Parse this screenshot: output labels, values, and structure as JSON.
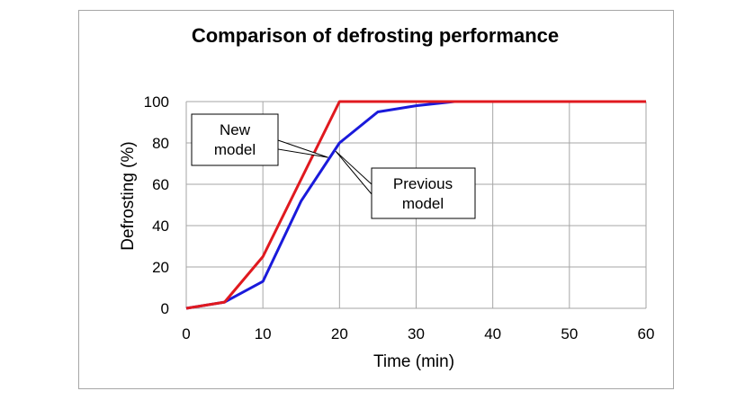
{
  "chart_data": {
    "type": "line",
    "title": "Comparison of defrosting performance",
    "xlabel": "Time (min)",
    "ylabel": "Defrosting (%)",
    "xlim": [
      0,
      60
    ],
    "ylim": [
      0,
      100
    ],
    "x_ticks": [
      0,
      10,
      20,
      30,
      40,
      50,
      60
    ],
    "y_ticks": [
      0,
      20,
      40,
      60,
      80,
      100
    ],
    "grid": true,
    "series": [
      {
        "color": "#e0191f",
        "x": [
          0,
          5,
          10,
          20,
          25,
          30,
          35,
          40,
          50,
          60
        ],
        "y": [
          0,
          3,
          25,
          100,
          100,
          100,
          100,
          100,
          100,
          100
        ]
      },
      {
        "color": "#1a1adb",
        "x": [
          0,
          5,
          10,
          15,
          20,
          25,
          30,
          35,
          40,
          50,
          60
        ],
        "y": [
          0,
          3,
          13,
          52,
          80,
          95,
          98,
          100,
          100,
          100,
          100
        ]
      }
    ],
    "annotations": [
      {
        "text_lines": [
          "New",
          "model"
        ]
      },
      {
        "text_lines": [
          "Previous",
          "model"
        ]
      }
    ]
  }
}
